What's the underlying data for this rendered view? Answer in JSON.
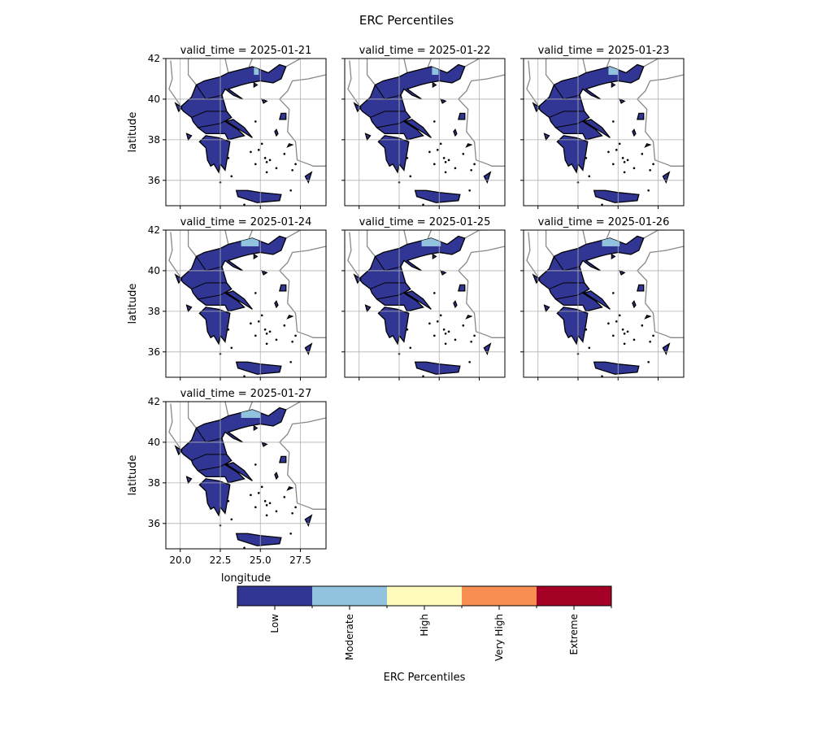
{
  "chart_data": {
    "type": "heatmap",
    "title": "ERC Percentiles",
    "xlabel": "longitude",
    "ylabel": "latitude",
    "xlim": [
      19.1,
      29.1
    ],
    "ylim": [
      34.75,
      42
    ],
    "xticks": [
      "20.0",
      "22.5",
      "25.0",
      "27.5"
    ],
    "xtick_values": [
      20,
      22.5,
      25,
      27.5
    ],
    "yticks": [
      "36",
      "38",
      "40",
      "42"
    ],
    "ytick_values": [
      36,
      38,
      40,
      42
    ],
    "grid": true,
    "panels": [
      {
        "title": "valid_time = 2025-01-21",
        "dominant": "Low",
        "moderate_lon": [
          24.6,
          24.9
        ]
      },
      {
        "title": "valid_time = 2025-01-22",
        "dominant": "Low",
        "moderate_lon": [
          24.55,
          24.95
        ]
      },
      {
        "title": "valid_time = 2025-01-23",
        "dominant": "Low",
        "moderate_lon": [
          24.4,
          25.0
        ]
      },
      {
        "title": "valid_time = 2025-01-24",
        "dominant": "Low",
        "moderate_lon": [
          23.8,
          24.9
        ]
      },
      {
        "title": "valid_time = 2025-01-25",
        "dominant": "Low",
        "moderate_lon": [
          23.9,
          25.1
        ]
      },
      {
        "title": "valid_time = 2025-01-26",
        "dominant": "Low",
        "moderate_lon": [
          24.0,
          25.1
        ]
      },
      {
        "title": "valid_time = 2025-01-27",
        "dominant": "Low",
        "moderate_lon": [
          23.8,
          25.0
        ]
      }
    ],
    "colorbar": {
      "label": "ERC Percentiles",
      "categories": [
        "Low",
        "Moderate",
        "High",
        "Very High",
        "Extreme"
      ],
      "colors": [
        "#313695",
        "#91c3de",
        "#fffbbb",
        "#f88e52",
        "#a50026"
      ]
    }
  }
}
